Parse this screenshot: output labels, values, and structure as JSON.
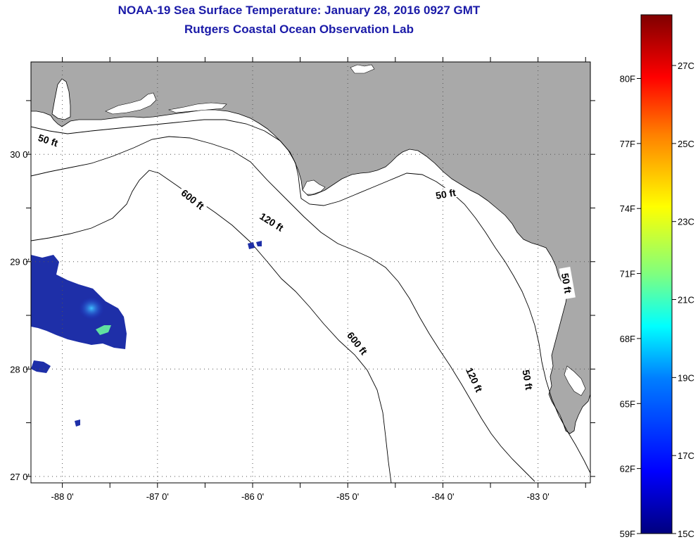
{
  "header": {
    "title": "NOAA-19 Sea Surface Temperature:  January 28, 2016 0927 GMT",
    "subtitle": "Rutgers Coastal Ocean Observation Lab"
  },
  "map": {
    "lon_range": [
      -88.33,
      -82.45
    ],
    "lat_range": [
      26.94,
      30.86
    ],
    "lon_ticks": [
      {
        "value": -88,
        "label": "-88 0'"
      },
      {
        "value": -87,
        "label": "-87 0'"
      },
      {
        "value": -86,
        "label": "-86 0'"
      },
      {
        "value": -85,
        "label": "-85 0'"
      },
      {
        "value": -84,
        "label": "-84 0'"
      },
      {
        "value": -83,
        "label": "-83 0'"
      }
    ],
    "lat_ticks": [
      {
        "value": 30,
        "label": "30 0'"
      },
      {
        "value": 29,
        "label": "29 0'"
      },
      {
        "value": 28,
        "label": "28 0'"
      },
      {
        "value": 27,
        "label": "27 0'"
      }
    ],
    "land_color": "#a9a9a9",
    "water_color": "#ffffff",
    "contour_labels": [
      {
        "text": "50 ft",
        "lon": -88.15,
        "lat": 30.13,
        "angle": 18
      },
      {
        "text": "600 ft",
        "lon": -86.63,
        "lat": 29.58,
        "angle": 38
      },
      {
        "text": "120 ft",
        "lon": -85.8,
        "lat": 29.37,
        "angle": 32
      },
      {
        "text": "50 ft",
        "lon": -83.97,
        "lat": 29.63,
        "angle": -10
      },
      {
        "text": "600 ft",
        "lon": -84.9,
        "lat": 28.24,
        "angle": 52
      },
      {
        "text": "120 ft",
        "lon": -83.67,
        "lat": 27.9,
        "angle": 65
      },
      {
        "text": "50 ft",
        "lon": -83.11,
        "lat": 27.9,
        "angle": 80
      },
      {
        "text": "50 ft",
        "lon": -82.7,
        "lat": 28.8,
        "angle": 80
      }
    ]
  },
  "colorbar": {
    "min_c": 15,
    "max_c": 28.3,
    "f_labels": [
      "80F",
      "77F",
      "74F",
      "71F",
      "68F",
      "65F",
      "62F",
      "59F"
    ],
    "f_values": [
      80,
      77,
      74,
      71,
      68,
      65,
      62,
      59
    ],
    "c_labels": [
      "27C",
      "25C",
      "23C",
      "21C",
      "19C",
      "17C",
      "15C"
    ],
    "c_values": [
      27,
      25,
      23,
      21,
      19,
      17,
      15
    ],
    "color_stops": [
      "#00007f",
      "#0000ff",
      "#007fff",
      "#00ffff",
      "#7fff7f",
      "#ffff00",
      "#ff7f00",
      "#ff0000",
      "#7f0000"
    ]
  }
}
